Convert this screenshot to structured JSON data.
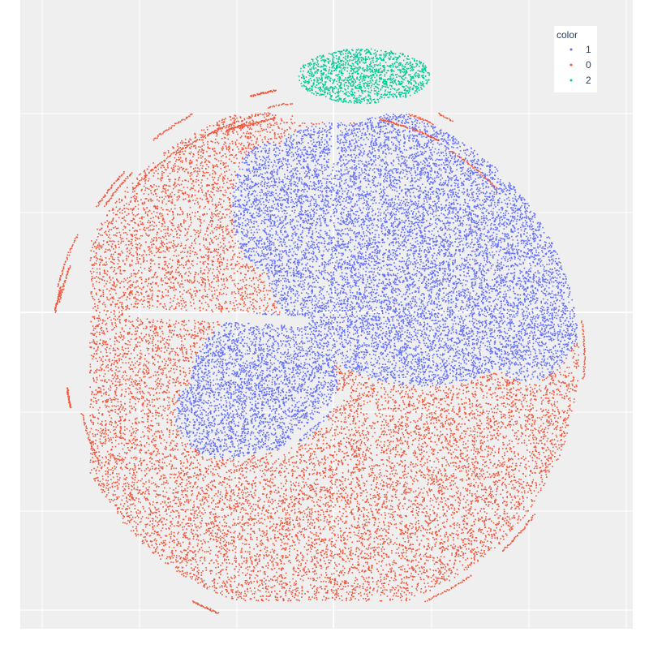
{
  "chart_data": {
    "type": "scatter",
    "title": "",
    "xlabel": "",
    "ylabel": "",
    "xlim": [
      -80,
      80
    ],
    "ylim": [
      -80,
      80
    ],
    "grid": true,
    "legend": {
      "title": "color",
      "placement": "top-right"
    },
    "series": [
      {
        "name": "1",
        "color": "#636efa",
        "point_count": 14000
      },
      {
        "name": "0",
        "color": "#ef553b",
        "point_count": 12000
      },
      {
        "name": "2",
        "color": "#00cc96",
        "point_count": 1400
      }
    ]
  }
}
